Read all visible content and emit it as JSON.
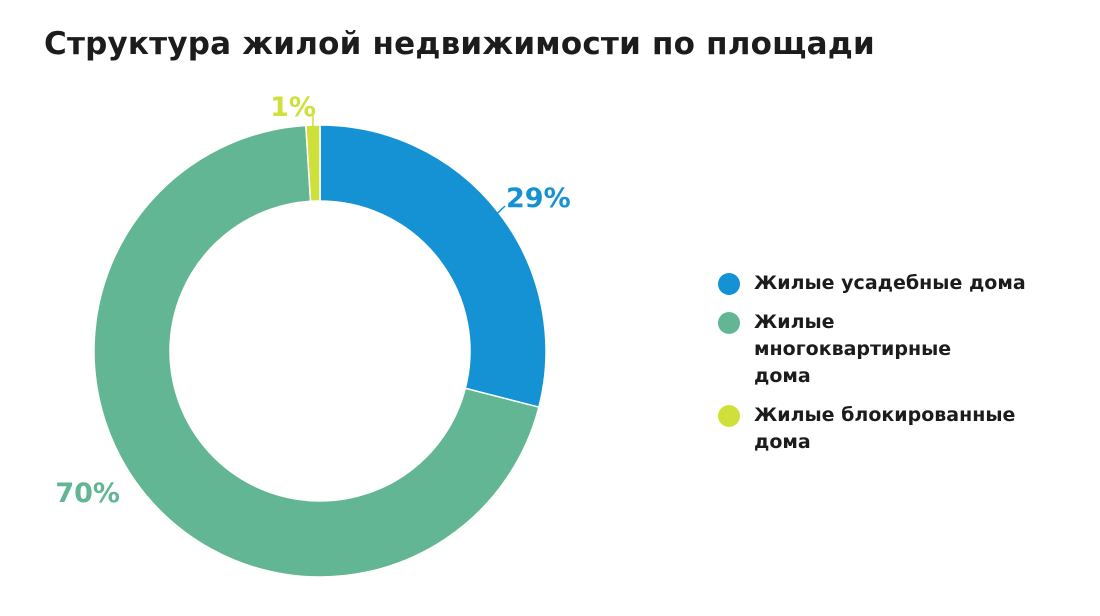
{
  "chart_data": {
    "type": "pie",
    "title": "Структура жилой недвижимости по площади",
    "donut": true,
    "legend_position": "right",
    "slices": [
      {
        "name": "Жилые усадебные дома",
        "value": 29,
        "label": "29%",
        "color": "#1592d4"
      },
      {
        "name": "Жилые многоквартирные дома",
        "value": 70,
        "label": "70%",
        "color": "#63b693"
      },
      {
        "name": "Жилые блокированные дома",
        "value": 1,
        "label": "1%",
        "color": "#cfe03a"
      }
    ]
  },
  "legend": {
    "items": [
      {
        "label": "Жилые усадебные дома",
        "color": "#1592d4"
      },
      {
        "label": "Жилые многоквартирные дома",
        "color": "#63b693"
      },
      {
        "label": "Жилые блокированные дома",
        "color": "#cfe03a"
      }
    ]
  }
}
